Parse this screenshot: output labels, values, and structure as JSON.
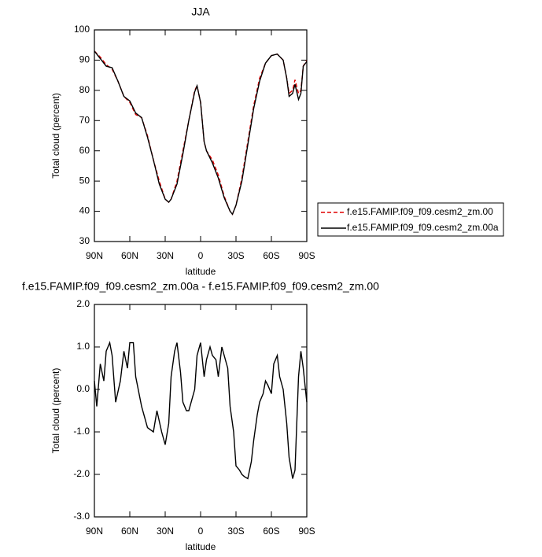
{
  "chart_data": [
    {
      "type": "line",
      "title": "JJA",
      "xlabel": "latitude",
      "ylabel": "Total cloud (percent)",
      "x": [
        90,
        85,
        80,
        75,
        70,
        65,
        60,
        55,
        50,
        45,
        40,
        35,
        30,
        27,
        25,
        20,
        15,
        10,
        5,
        3,
        0,
        -3,
        -5,
        -10,
        -15,
        -20,
        -25,
        -27,
        -30,
        -35,
        -40,
        -45,
        -50,
        -55,
        -60,
        -65,
        -70,
        -73,
        -75,
        -78,
        -80,
        -83,
        -85,
        -87,
        -90
      ],
      "series": [
        {
          "name": "f.e15.FAMIP.f09_f09.cesm2_zm.00",
          "color": "#e00000",
          "dash": true,
          "values": [
            93,
            91,
            88.5,
            87,
            83,
            78,
            76,
            72,
            71,
            65,
            57,
            50,
            44,
            43,
            44,
            50,
            60,
            70,
            80,
            81.5,
            76,
            63,
            60,
            57,
            52,
            45,
            40,
            39,
            42,
            51,
            63,
            75,
            84,
            89,
            91.5,
            92,
            90,
            84,
            79,
            80,
            83.5,
            79,
            80,
            88,
            90
          ]
        },
        {
          "name": "f.e15.FAMIP.f09_f09.cesm2_zm.00a",
          "color": "#000000",
          "dash": false,
          "values": [
            93,
            90.5,
            88,
            87.5,
            83,
            78,
            76.5,
            72.5,
            71,
            64.5,
            57,
            49,
            44,
            43,
            44,
            49,
            59,
            70,
            79.5,
            81.5,
            76,
            63,
            60,
            56,
            51,
            44.5,
            40,
            39,
            42,
            50,
            62,
            74,
            83,
            89,
            91.5,
            92,
            90,
            84,
            78,
            79,
            82,
            77,
            79,
            88,
            89.5
          ]
        }
      ],
      "xlim": [
        90,
        -90
      ],
      "xticks": [
        {
          "value": 90,
          "label": "90N"
        },
        {
          "value": 60,
          "label": "60N"
        },
        {
          "value": 30,
          "label": "30N"
        },
        0,
        {
          "value": -30,
          "label": "30S"
        },
        {
          "value": -60,
          "label": "60S"
        },
        {
          "value": -90,
          "label": "90S"
        }
      ],
      "ylim": [
        30,
        100
      ],
      "yticks": [
        30,
        40,
        50,
        60,
        70,
        80,
        90,
        100
      ],
      "legend": "right"
    },
    {
      "type": "line",
      "title": "f.e15.FAMIP.f09_f09.cesm2_zm.00a - f.e15.FAMIP.f09_f09.cesm2_zm.00",
      "xlabel": "latitude",
      "ylabel": "Total cloud (percent)",
      "x": [
        90,
        88,
        85,
        82,
        80,
        77,
        75,
        72,
        68,
        65,
        62,
        60,
        57,
        55,
        50,
        45,
        40,
        37,
        33,
        30,
        27,
        25,
        22,
        20,
        17,
        15,
        12,
        10,
        7,
        5,
        3,
        0,
        -3,
        -5,
        -8,
        -10,
        -13,
        -15,
        -18,
        -20,
        -23,
        -25,
        -28,
        -30,
        -33,
        -35,
        -37,
        -40,
        -43,
        -45,
        -48,
        -50,
        -53,
        -55,
        -57,
        -60,
        -62,
        -65,
        -67,
        -70,
        -73,
        -75,
        -78,
        -80,
        -83,
        -85,
        -87,
        -90
      ],
      "series": [
        {
          "color": "#000000",
          "dash": false,
          "values": [
            0.2,
            -0.4,
            0.6,
            0.2,
            0.9,
            1.1,
            0.8,
            -0.3,
            0.2,
            0.9,
            0.5,
            1.1,
            1.1,
            0.3,
            -0.4,
            -0.9,
            -1.0,
            -0.5,
            -1.0,
            -1.3,
            -0.8,
            0.3,
            0.9,
            1.1,
            0.4,
            -0.3,
            -0.5,
            -0.5,
            -0.2,
            0,
            0.8,
            1.1,
            0.3,
            0.7,
            1.0,
            0.8,
            0.7,
            0.3,
            1.0,
            0.8,
            0.5,
            -0.4,
            -1.0,
            -1.8,
            -1.9,
            -2.0,
            -2.05,
            -2.1,
            -1.7,
            -1.2,
            -0.6,
            -0.3,
            -0.1,
            0.2,
            0.1,
            -0.1,
            0.6,
            0.8,
            0.3,
            0,
            -0.8,
            -1.6,
            -2.1,
            -1.9,
            0.3,
            0.9,
            0.5,
            -0.3
          ]
        }
      ],
      "xlim": [
        90,
        -90
      ],
      "xticks": [
        {
          "value": 90,
          "label": "90N"
        },
        {
          "value": 60,
          "label": "60N"
        },
        {
          "value": 30,
          "label": "30N"
        },
        0,
        {
          "value": -30,
          "label": "30S"
        },
        {
          "value": -60,
          "label": "60S"
        },
        {
          "value": -90,
          "label": "90S"
        }
      ],
      "ylim": [
        -3,
        2
      ],
      "yticks": [
        {
          "value": -3,
          "label": "-3.0"
        },
        {
          "value": -2,
          "label": "-2.0"
        },
        {
          "value": -1,
          "label": "-1.0"
        },
        {
          "value": 0,
          "label": "0.0"
        },
        {
          "value": 1,
          "label": "1.0"
        },
        {
          "value": 2,
          "label": "2.0"
        }
      ]
    }
  ]
}
